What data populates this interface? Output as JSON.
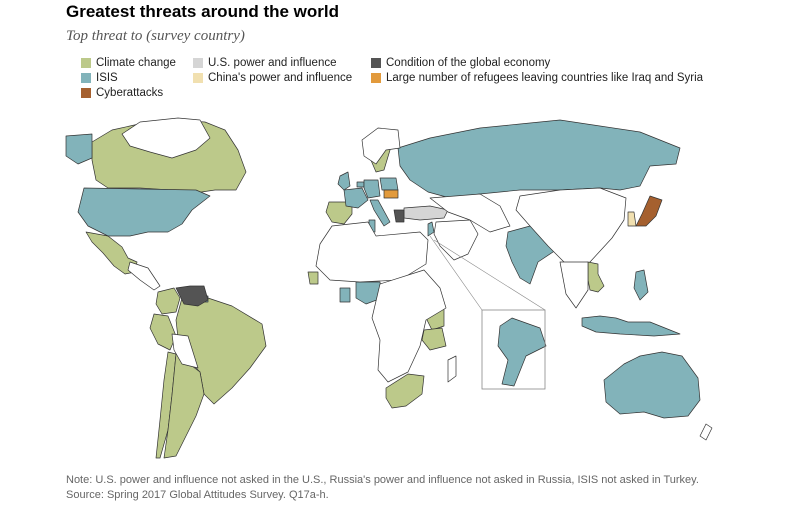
{
  "title": "Greatest threats around the world",
  "subtitle": "Top threat to (survey country)",
  "colors": {
    "climate": "#bcc98a",
    "isis": "#82b3ba",
    "cyber": "#a5602f",
    "us_power": "#d5d5d5",
    "china_power": "#f1e0b0",
    "economy": "#545454",
    "refugees": "#e29a3c",
    "no_data": "#ffffff",
    "border": "#333333"
  },
  "legend": [
    {
      "label": "Climate change",
      "color": "#bcc98a"
    },
    {
      "label": "ISIS",
      "color": "#82b3ba"
    },
    {
      "label": "Cyberattacks",
      "color": "#a5602f"
    },
    {
      "label": "U.S. power and influence",
      "color": "#d5d5d5"
    },
    {
      "label": "China's power and influence",
      "color": "#f1e0b0"
    },
    {
      "label": "Condition of the global economy",
      "color": "#545454"
    },
    {
      "label": "Large number of refugees leaving countries like Iraq and Syria",
      "color": "#e29a3c"
    }
  ],
  "note": "Note: U.S. power and influence not asked in the U.S., Russia's power and influence not asked in Russia, ISIS not asked in Turkey.",
  "source": "Source: Spring 2017 Global Attitudes Survey. Q17a-h."
}
